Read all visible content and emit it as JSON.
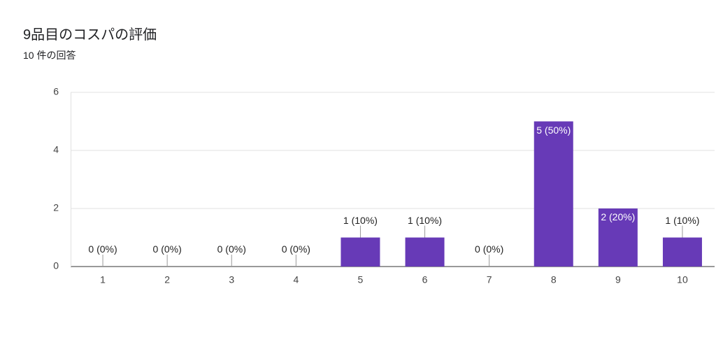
{
  "chart_data": {
    "type": "bar",
    "title": "9品目のコスパの評価",
    "subtitle": "10 件の回答",
    "categories": [
      "1",
      "2",
      "3",
      "4",
      "5",
      "6",
      "7",
      "8",
      "9",
      "10"
    ],
    "values": [
      0,
      0,
      0,
      0,
      1,
      1,
      0,
      5,
      2,
      1
    ],
    "value_labels": [
      "0 (0%)",
      "0 (0%)",
      "0 (0%)",
      "0 (0%)",
      "1 (10%)",
      "1 (10%)",
      "0 (0%)",
      "5 (50%)",
      "2 (20%)",
      "1 (10%)"
    ],
    "color": "#673ab7",
    "ylim": [
      0,
      6
    ],
    "yticks": [
      0,
      2,
      4,
      6
    ],
    "grid": true
  }
}
